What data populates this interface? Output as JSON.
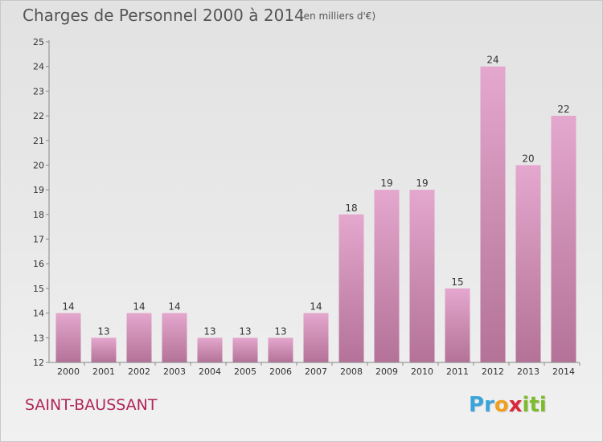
{
  "title": "Charges de Personnel 2000 à 2014",
  "subtitle": "(en milliers d'€)",
  "place_label": "SAINT-BAUSSANT",
  "logo": {
    "letters": [
      "P",
      "r",
      "o",
      "x",
      "i",
      "t",
      "i"
    ],
    "colors": [
      "#3aa3dc",
      "#3aa3dc",
      "#f0a020",
      "#d9263a",
      "#7dbb2e",
      "#7dbb2e",
      "#7dbb2e"
    ]
  },
  "colors": {
    "bar_top": "#e4a7cd",
    "bar_bottom": "#b47298",
    "place": "#b1245a",
    "text": "#555555"
  },
  "chart_data": {
    "type": "bar",
    "title": "Charges de Personnel 2000 à 2014",
    "subtitle": "(en milliers d'€)",
    "categories": [
      "2000",
      "2001",
      "2002",
      "2003",
      "2004",
      "2005",
      "2006",
      "2007",
      "2008",
      "2009",
      "2010",
      "2011",
      "2012",
      "2013",
      "2014"
    ],
    "values": [
      14,
      13,
      14,
      14,
      13,
      13,
      13,
      14,
      18,
      19,
      19,
      15,
      24,
      20,
      22
    ],
    "ylim": [
      12,
      25
    ],
    "yticks": [
      12,
      13,
      14,
      15,
      16,
      17,
      18,
      19,
      20,
      21,
      22,
      23,
      24,
      25
    ],
    "grid": false,
    "legend": "none"
  }
}
